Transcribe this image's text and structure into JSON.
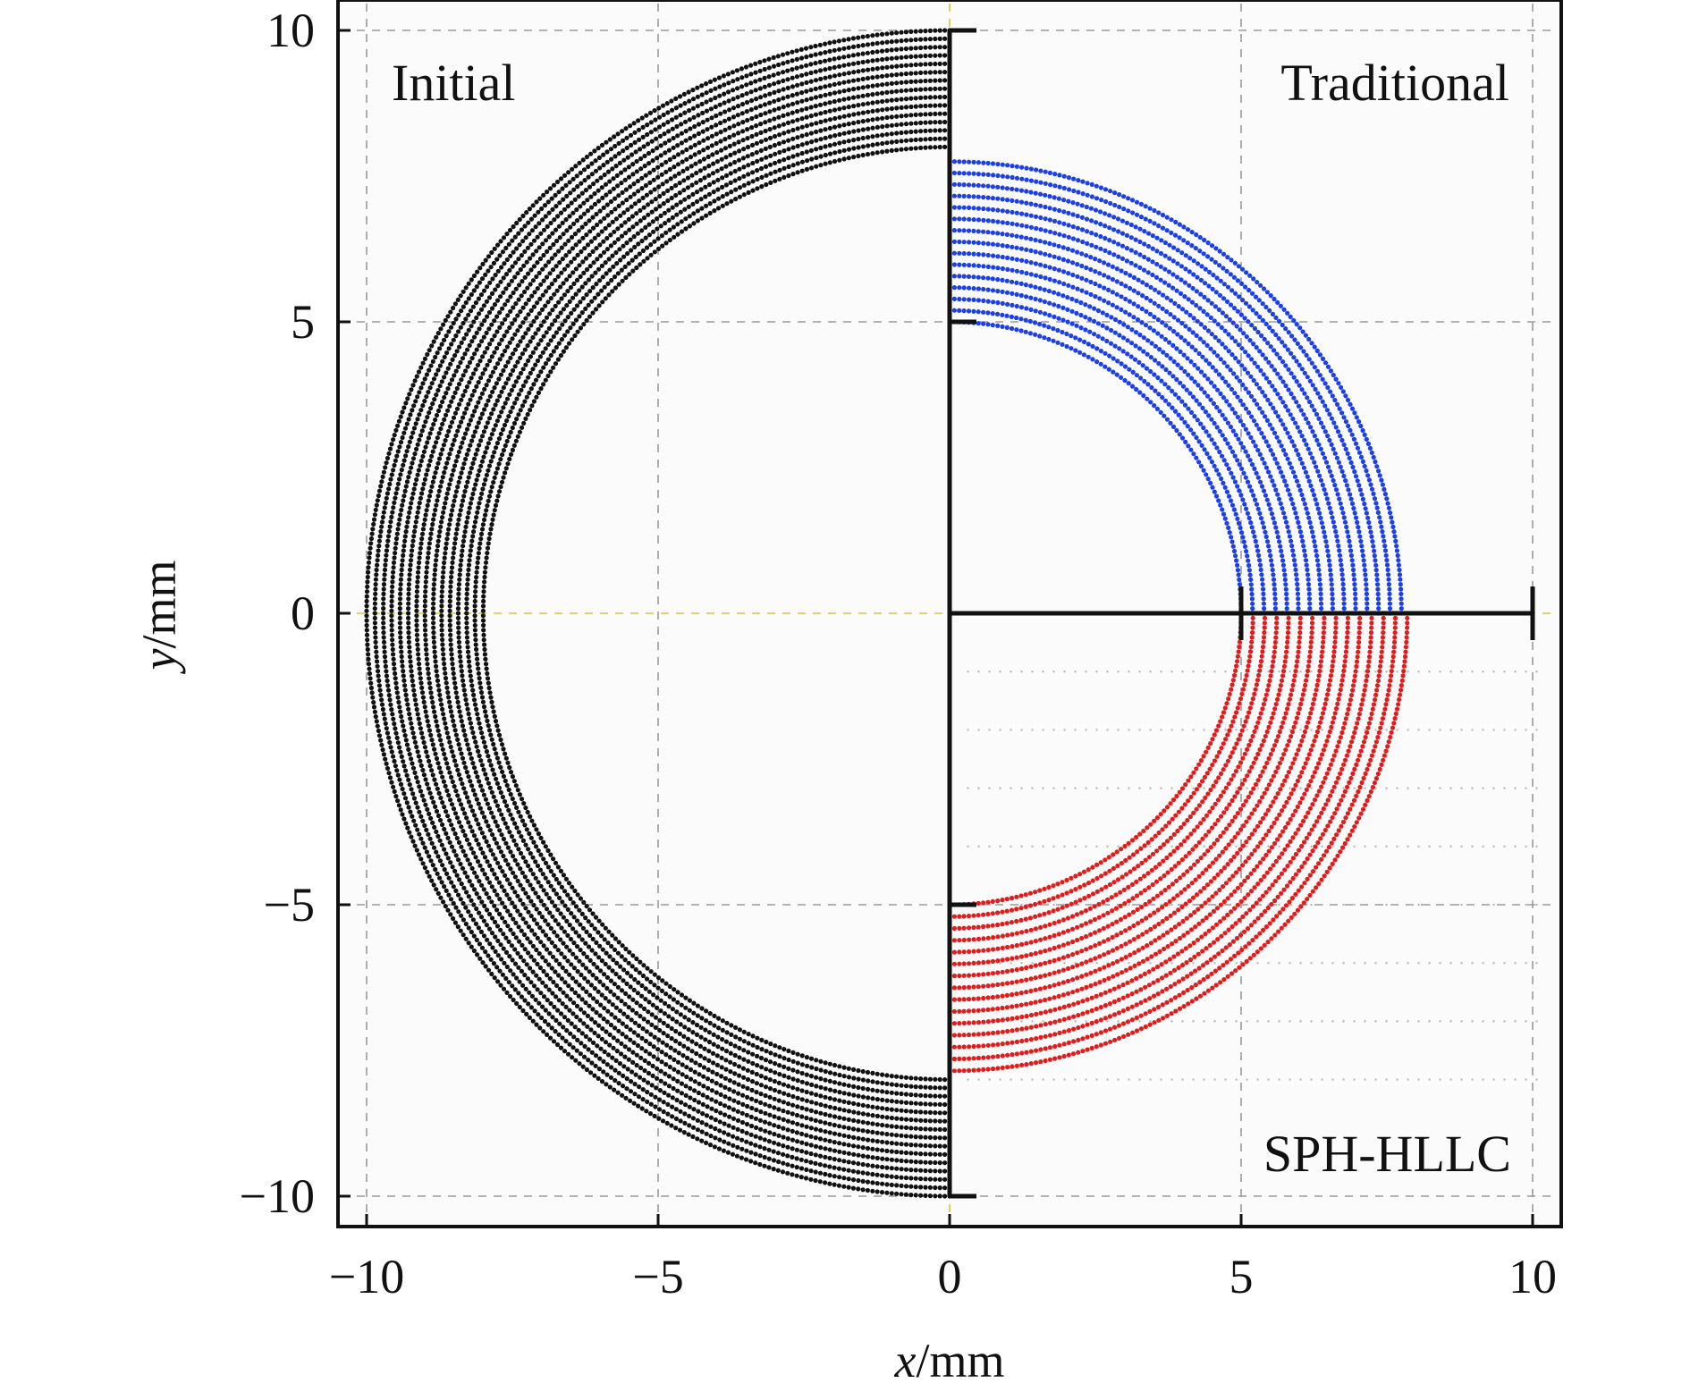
{
  "chart_data": {
    "type": "scatter",
    "xlabel_var": "x",
    "xlabel_unit": "/mm",
    "ylabel_var": "y",
    "ylabel_unit": "/mm",
    "xlim": [
      -10.5,
      10.5
    ],
    "ylim": [
      -10.5,
      10.5
    ],
    "xticks": [
      -10,
      -5,
      0,
      5,
      10
    ],
    "yticks": [
      -10,
      -5,
      0,
      5,
      10
    ],
    "xtick_labels": [
      "−10",
      "−5",
      "0",
      "5",
      "10"
    ],
    "ytick_labels": [
      "−10",
      "−5",
      "0",
      "5",
      "10"
    ],
    "grid": true,
    "annotations": {
      "left_top": "Initial",
      "right_top": "Traditional",
      "right_bottom": "SPH-HLLC"
    },
    "series": [
      {
        "color": "#111111",
        "shape": "annulus_left_half",
        "inner_radius": 8,
        "outer_radius": 10,
        "angle_range_deg": [
          90,
          270
        ],
        "rings": 15
      },
      {
        "color": "#1c3fe6",
        "shape": "annulus_quarter",
        "inner_radius": 5,
        "outer_radius": 7.75,
        "angle_range_deg": [
          0,
          90
        ],
        "rings": 15
      },
      {
        "color": "#e01c1c",
        "shape": "annulus_quarter",
        "inner_radius": 5,
        "outer_radius": 7.85,
        "angle_range_deg": [
          270,
          360
        ],
        "rings": 15
      }
    ],
    "walls": [
      {
        "from": [
          0,
          10
        ],
        "to": [
          0,
          -10
        ]
      },
      {
        "from": [
          0,
          0
        ],
        "to": [
          10,
          0
        ]
      }
    ]
  }
}
